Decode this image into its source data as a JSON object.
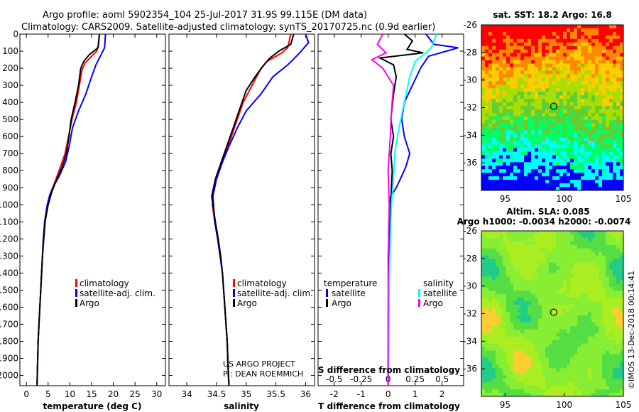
{
  "header": {
    "line1": "Argo profile: aoml 5902354_104 25-Jul-2017 31.9S 99.115E (DM data)",
    "line2": "Climatology: CARS2009. Satellite-adjusted climatology: synTS_20170725.nc (0.9d earlier)"
  },
  "colors": {
    "climatology": "#ff0000",
    "satellite": "#0000ff",
    "argo": "#000000",
    "salinity_sat": "#00ffff",
    "salinity_argo": "#ff00ff"
  },
  "depth_axis": {
    "ticks": [
      0,
      100,
      200,
      300,
      400,
      500,
      600,
      700,
      800,
      900,
      1000,
      1100,
      1200,
      1300,
      1400,
      1500,
      1600,
      1700,
      1800,
      1900,
      2000
    ],
    "labels": [
      "0",
      "100",
      "200",
      "300",
      "400",
      "500",
      "600",
      "700",
      "800",
      "900",
      "1000",
      "1100",
      "1200",
      "1300",
      "1400",
      "1500",
      "1600",
      "1700",
      "1800",
      "1900",
      "2000"
    ],
    "range": [
      0,
      2060
    ]
  },
  "chart_data": [
    {
      "id": "temperature",
      "type": "line",
      "xlabel": "temperature (deg C)",
      "xlim": [
        -1.5,
        32
      ],
      "xticks": [
        0,
        5,
        10,
        15,
        20,
        25,
        30
      ],
      "xtick_labels": [
        "0",
        "5",
        "10",
        "15",
        "20",
        "25",
        "30"
      ],
      "legend": [
        "climatology",
        "satellite-adj. clim.",
        "Argo"
      ],
      "series": [
        {
          "name": "climatology",
          "color": "#ff0000",
          "points": [
            [
              16.8,
              0
            ],
            [
              16.6,
              60
            ],
            [
              16.2,
              100
            ],
            [
              15.0,
              130
            ],
            [
              13.5,
              170
            ],
            [
              12.8,
              210
            ],
            [
              12.2,
              300
            ],
            [
              11.5,
              400
            ],
            [
              10.5,
              500
            ],
            [
              9.7,
              600
            ],
            [
              8.9,
              700
            ],
            [
              7.8,
              780
            ],
            [
              6.8,
              850
            ],
            [
              5.6,
              930
            ],
            [
              4.8,
              1000
            ],
            [
              4.2,
              1100
            ],
            [
              3.9,
              1200
            ],
            [
              3.7,
              1300
            ],
            [
              3.5,
              1400
            ],
            [
              3.3,
              1500
            ],
            [
              3.1,
              1600
            ],
            [
              2.9,
              1700
            ],
            [
              2.7,
              1800
            ],
            [
              2.6,
              1900
            ],
            [
              2.5,
              2000
            ],
            [
              2.45,
              2050
            ]
          ]
        },
        {
          "name": "satellite-adj. clim.",
          "color": "#0000ff",
          "points": [
            [
              18.2,
              0
            ],
            [
              18.0,
              80
            ],
            [
              17.4,
              110
            ],
            [
              16.0,
              180
            ],
            [
              15.0,
              250
            ],
            [
              13.7,
              350
            ],
            [
              12.0,
              450
            ],
            [
              10.6,
              550
            ],
            [
              9.9,
              650
            ],
            [
              9.0,
              750
            ],
            [
              7.6,
              830
            ],
            [
              6.5,
              880
            ],
            [
              5.4,
              940
            ],
            [
              4.8,
              1000
            ],
            [
              4.2,
              1100
            ],
            [
              3.9,
              1200
            ],
            [
              3.7,
              1300
            ],
            [
              3.5,
              1400
            ],
            [
              3.3,
              1500
            ],
            [
              3.1,
              1600
            ],
            [
              2.9,
              1700
            ],
            [
              2.7,
              1800
            ],
            [
              2.6,
              1900
            ],
            [
              2.5,
              2000
            ],
            [
              2.45,
              2050
            ]
          ]
        },
        {
          "name": "Argo",
          "color": "#000000",
          "points": [
            [
              16.8,
              0
            ],
            [
              16.5,
              80
            ],
            [
              15.5,
              100
            ],
            [
              14.5,
              120
            ],
            [
              13.2,
              160
            ],
            [
              12.5,
              200
            ],
            [
              12.0,
              300
            ],
            [
              11.2,
              400
            ],
            [
              10.3,
              500
            ],
            [
              9.8,
              600
            ],
            [
              9.2,
              700
            ],
            [
              8.2,
              780
            ],
            [
              7.0,
              850
            ],
            [
              5.9,
              920
            ],
            [
              5.0,
              1000
            ],
            [
              4.3,
              1100
            ],
            [
              4.0,
              1200
            ],
            [
              3.7,
              1300
            ],
            [
              3.5,
              1400
            ],
            [
              3.3,
              1500
            ],
            [
              3.1,
              1600
            ],
            [
              2.9,
              1700
            ],
            [
              2.7,
              1800
            ],
            [
              2.6,
              1900
            ],
            [
              2.5,
              2000
            ],
            [
              2.45,
              2060
            ]
          ]
        }
      ]
    },
    {
      "id": "salinity",
      "type": "line",
      "xlabel": "salinity",
      "xlim": [
        33.7,
        36.15
      ],
      "xticks": [
        34,
        34.5,
        35,
        35.5,
        36
      ],
      "xtick_labels": [
        "34",
        "34.5",
        "35",
        "35.5",
        "36"
      ],
      "legend": [
        "climatology",
        "satellite-adj. clim.",
        "Argo"
      ],
      "credit": [
        "US ARGO PROJECT",
        "PI: DEAN ROEMMICH"
      ],
      "series": [
        {
          "name": "climatology",
          "color": "#ff0000",
          "points": [
            [
              35.75,
              0
            ],
            [
              35.7,
              80
            ],
            [
              35.6,
              110
            ],
            [
              35.35,
              160
            ],
            [
              35.25,
              200
            ],
            [
              35.1,
              300
            ],
            [
              34.95,
              400
            ],
            [
              34.85,
              500
            ],
            [
              34.75,
              600
            ],
            [
              34.65,
              700
            ],
            [
              34.55,
              800
            ],
            [
              34.45,
              900
            ],
            [
              34.43,
              1000
            ],
            [
              34.47,
              1100
            ],
            [
              34.52,
              1200
            ],
            [
              34.56,
              1300
            ],
            [
              34.6,
              1400
            ],
            [
              34.62,
              1500
            ],
            [
              34.64,
              1600
            ],
            [
              34.66,
              1700
            ],
            [
              34.68,
              1800
            ],
            [
              34.69,
              1900
            ],
            [
              34.7,
              2000
            ],
            [
              34.71,
              2050
            ]
          ]
        },
        {
          "name": "satellite-adj. clim.",
          "color": "#0000ff",
          "points": [
            [
              36.0,
              0
            ],
            [
              36.05,
              50
            ],
            [
              35.9,
              110
            ],
            [
              35.7,
              180
            ],
            [
              35.45,
              250
            ],
            [
              35.25,
              350
            ],
            [
              35.0,
              450
            ],
            [
              34.85,
              550
            ],
            [
              34.72,
              650
            ],
            [
              34.6,
              750
            ],
            [
              34.5,
              850
            ],
            [
              34.44,
              950
            ],
            [
              34.45,
              1000
            ],
            [
              34.47,
              1100
            ],
            [
              34.52,
              1200
            ],
            [
              34.56,
              1300
            ],
            [
              34.6,
              1400
            ],
            [
              34.62,
              1500
            ],
            [
              34.64,
              1600
            ],
            [
              34.66,
              1700
            ],
            [
              34.68,
              1800
            ],
            [
              34.69,
              1900
            ],
            [
              34.7,
              2000
            ],
            [
              34.71,
              2050
            ]
          ]
        },
        {
          "name": "Argo",
          "color": "#000000",
          "points": [
            [
              35.8,
              0
            ],
            [
              35.75,
              60
            ],
            [
              35.55,
              100
            ],
            [
              35.4,
              140
            ],
            [
              35.3,
              180
            ],
            [
              35.15,
              250
            ],
            [
              35.0,
              330
            ],
            [
              34.88,
              450
            ],
            [
              34.78,
              550
            ],
            [
              34.68,
              650
            ],
            [
              34.58,
              750
            ],
            [
              34.48,
              850
            ],
            [
              34.42,
              950
            ],
            [
              34.44,
              1000
            ],
            [
              34.48,
              1100
            ],
            [
              34.53,
              1200
            ],
            [
              34.57,
              1300
            ],
            [
              34.6,
              1400
            ],
            [
              34.62,
              1500
            ],
            [
              34.64,
              1600
            ],
            [
              34.66,
              1700
            ],
            [
              34.68,
              1800
            ],
            [
              34.69,
              1900
            ],
            [
              34.7,
              2000
            ],
            [
              34.71,
              2060
            ]
          ]
        }
      ]
    },
    {
      "id": "difference",
      "type": "line",
      "xlabel": "T difference from climatology",
      "top_label": "S difference from climatology",
      "xlim": [
        -2.6,
        2.8
      ],
      "xticks": [
        -2,
        -1,
        0,
        1,
        2
      ],
      "xtick_labels": [
        "-2",
        "-1",
        "0",
        "1",
        "2"
      ],
      "top_ticks": [
        -0.5,
        -0.25,
        0,
        0.25,
        0.5
      ],
      "top_tick_labels": [
        "-0.5",
        "-0.25",
        "0",
        "0.25",
        "0.5"
      ],
      "legend_left_title": "temperature",
      "legend_right_title": "salinity",
      "legend_left": [
        "satellite",
        "Argo"
      ],
      "legend_right": [
        "satellite",
        "Argo"
      ],
      "series": [
        {
          "name": "T satellite",
          "color": "#0000ff",
          "points": [
            [
              1.4,
              0
            ],
            [
              1.7,
              60
            ],
            [
              2.6,
              80
            ],
            [
              1.5,
              130
            ],
            [
              1.2,
              200
            ],
            [
              0.9,
              300
            ],
            [
              0.6,
              400
            ],
            [
              0.5,
              500
            ],
            [
              0.6,
              600
            ],
            [
              0.8,
              700
            ],
            [
              0.65,
              780
            ],
            [
              0.45,
              850
            ],
            [
              0.3,
              900
            ],
            [
              0.1,
              950
            ],
            [
              0.05,
              1000
            ],
            [
              0.02,
              1200
            ],
            [
              0.01,
              1500
            ],
            [
              0.0,
              2050
            ]
          ]
        },
        {
          "name": "T Argo",
          "color": "#000000",
          "points": [
            [
              0.6,
              0
            ],
            [
              0.9,
              40
            ],
            [
              0.7,
              90
            ],
            [
              1.3,
              110
            ],
            [
              -0.3,
              140
            ],
            [
              0.2,
              180
            ],
            [
              0.3,
              250
            ],
            [
              0.2,
              350
            ],
            [
              0.1,
              500
            ],
            [
              0.2,
              600
            ],
            [
              0.1,
              700
            ],
            [
              0.15,
              800
            ],
            [
              0.12,
              900
            ],
            [
              0.1,
              1000
            ],
            [
              0.05,
              1200
            ],
            [
              0.02,
              1500
            ],
            [
              0.0,
              2060
            ]
          ]
        },
        {
          "name": "S satellite",
          "color": "#00ffff",
          "points": [
            [
              0.45,
              0
            ],
            [
              0.4,
              80
            ],
            [
              0.35,
              110
            ],
            [
              0.25,
              160
            ],
            [
              0.2,
              250
            ],
            [
              0.15,
              400
            ],
            [
              0.1,
              550
            ],
            [
              0.06,
              700
            ],
            [
              0.05,
              850
            ],
            [
              0.03,
              1000
            ],
            [
              0.02,
              1200
            ],
            [
              0.01,
              1500
            ],
            [
              0.0,
              2050
            ]
          ]
        },
        {
          "name": "S Argo",
          "color": "#ff00ff",
          "points": [
            [
              -0.05,
              0
            ],
            [
              -0.1,
              60
            ],
            [
              -0.02,
              110
            ],
            [
              -0.15,
              150
            ],
            [
              -0.05,
              200
            ],
            [
              0.05,
              300
            ],
            [
              0.03,
              450
            ],
            [
              0.02,
              600
            ],
            [
              0.0,
              800
            ],
            [
              0.01,
              1000
            ],
            [
              0.0,
              1300
            ],
            [
              0.0,
              2060
            ]
          ]
        }
      ]
    },
    {
      "id": "sst_map",
      "type": "heatmap",
      "title": "sat. SST: 18.2 Argo: 16.8",
      "xlim": [
        93,
        105
      ],
      "ylim": [
        -38,
        -26
      ],
      "xticks": [
        95,
        100,
        105
      ],
      "xtick_labels": [
        "95",
        "100",
        "105"
      ],
      "yticks": [
        -26,
        -28,
        -30,
        -32,
        -34,
        -36
      ],
      "ytick_labels": [
        "-26",
        "-28",
        "-30",
        "-32",
        "-34",
        "-36"
      ],
      "marker": [
        99.115,
        -31.9
      ]
    },
    {
      "id": "sla_map",
      "type": "heatmap",
      "title1": "Altim. SLA: 0.085",
      "title2": "Argo h1000: -0.0034 h2000: -0.0074",
      "xlim": [
        93,
        105
      ],
      "ylim": [
        -38,
        -26
      ],
      "xticks": [
        95,
        100,
        105
      ],
      "xtick_labels": [
        "95",
        "100",
        "105"
      ],
      "yticks": [
        -26,
        -28,
        -30,
        -32,
        -34,
        -36
      ],
      "ytick_labels": [
        "-26",
        "-28",
        "-30",
        "-32",
        "-34",
        "-36"
      ],
      "marker": [
        99.115,
        -31.9
      ]
    }
  ],
  "watermark": "©IMOS 13-Dec-2018 00:14:41"
}
